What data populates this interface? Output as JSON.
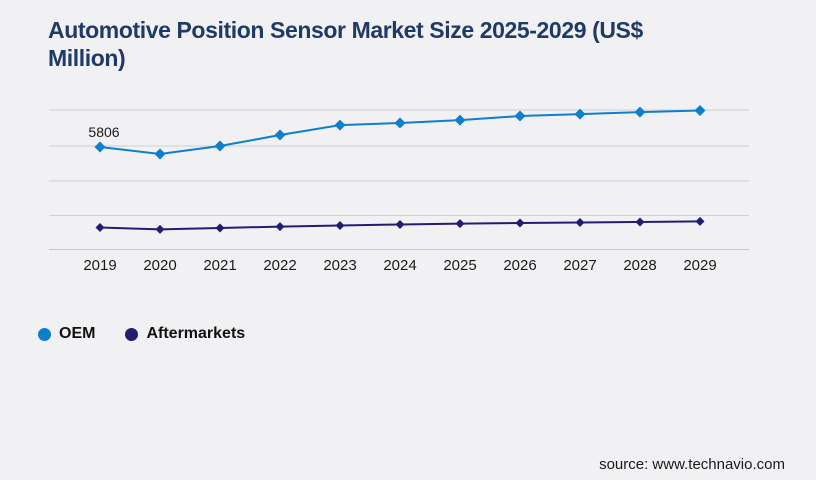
{
  "chart_data": {
    "type": "line",
    "title": "Automotive Position Sensor Market Size 2025-2029 (US$\nMillion)",
    "x": [
      "2019",
      "2020",
      "2021",
      "2022",
      "2023",
      "2024",
      "2025",
      "2026",
      "2027",
      "2028",
      "2029"
    ],
    "series": [
      {
        "name": "OEM",
        "color": "#0e7fcc",
        "marker": "diamond",
        "values": [
          5806,
          5410,
          5860,
          6480,
          7040,
          7160,
          7320,
          7550,
          7660,
          7770,
          7860
        ]
      },
      {
        "name": "Aftermarkets",
        "color": "#221d70",
        "marker": "diamond",
        "values": [
          1270,
          1160,
          1240,
          1320,
          1380,
          1440,
          1490,
          1520,
          1550,
          1580,
          1610
        ]
      }
    ],
    "point_label": {
      "series": "OEM",
      "category": "2019",
      "text": "5806"
    },
    "ylim": [
      0,
      9300
    ],
    "y_axis_labels_visible": false,
    "grid": "horizontal",
    "legend_position": "bottom-left",
    "note": "Only the 2019 OEM value (5806) is labeled on the chart; all other values are estimated from gridlines."
  },
  "source": "source: www.technavio.com",
  "colors": {
    "background": "#f1f1f3",
    "title_text": "#1f3a67",
    "gridline": "#cfd0d3",
    "axis_line": "#c6c7ca",
    "label_text": "#1a1a1a",
    "oem_series": "#0e7fcc",
    "aftermarkets_series": "#221d70"
  }
}
